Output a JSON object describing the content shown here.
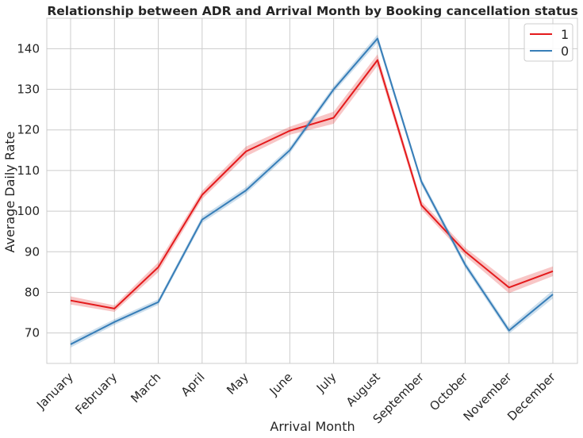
{
  "chart_data": {
    "type": "line",
    "title": "Relationship between ADR and Arrival Month by Booking cancellation status",
    "xlabel": "Arrival Month",
    "ylabel": "Average Daily Rate",
    "categories": [
      "January",
      "February",
      "March",
      "April",
      "May",
      "June",
      "July",
      "August",
      "September",
      "October",
      "November",
      "December"
    ],
    "ylim": [
      62.5,
      147.5
    ],
    "yticks": [
      70,
      80,
      90,
      100,
      110,
      120,
      130,
      140
    ],
    "grid": true,
    "legend_position": "top-right",
    "series": [
      {
        "name": "1",
        "color": "#e41a1c",
        "values": [
          78.0,
          76.0,
          86.2,
          104.0,
          114.7,
          119.8,
          123.0,
          137.2,
          101.5,
          90.0,
          81.2,
          85.2
        ],
        "ci_lower": [
          77.0,
          75.2,
          85.0,
          103.0,
          113.5,
          118.8,
          121.5,
          135.8,
          100.5,
          89.0,
          79.8,
          84.0
        ],
        "ci_upper": [
          79.0,
          76.8,
          87.4,
          105.0,
          115.9,
          120.8,
          124.5,
          138.6,
          102.5,
          91.0,
          82.6,
          86.4
        ]
      },
      {
        "name": "0",
        "color": "#377eb8",
        "values": [
          67.2,
          72.7,
          77.6,
          97.9,
          105.1,
          115.0,
          130.0,
          142.5,
          107.3,
          86.8,
          70.6,
          79.5
        ],
        "ci_lower": [
          66.4,
          72.0,
          76.9,
          97.1,
          104.3,
          114.2,
          129.2,
          141.5,
          106.5,
          86.0,
          69.8,
          78.5
        ],
        "ci_upper": [
          68.0,
          73.4,
          78.3,
          98.7,
          105.9,
          115.8,
          130.8,
          143.5,
          108.1,
          87.6,
          71.4,
          80.5
        ]
      }
    ]
  }
}
